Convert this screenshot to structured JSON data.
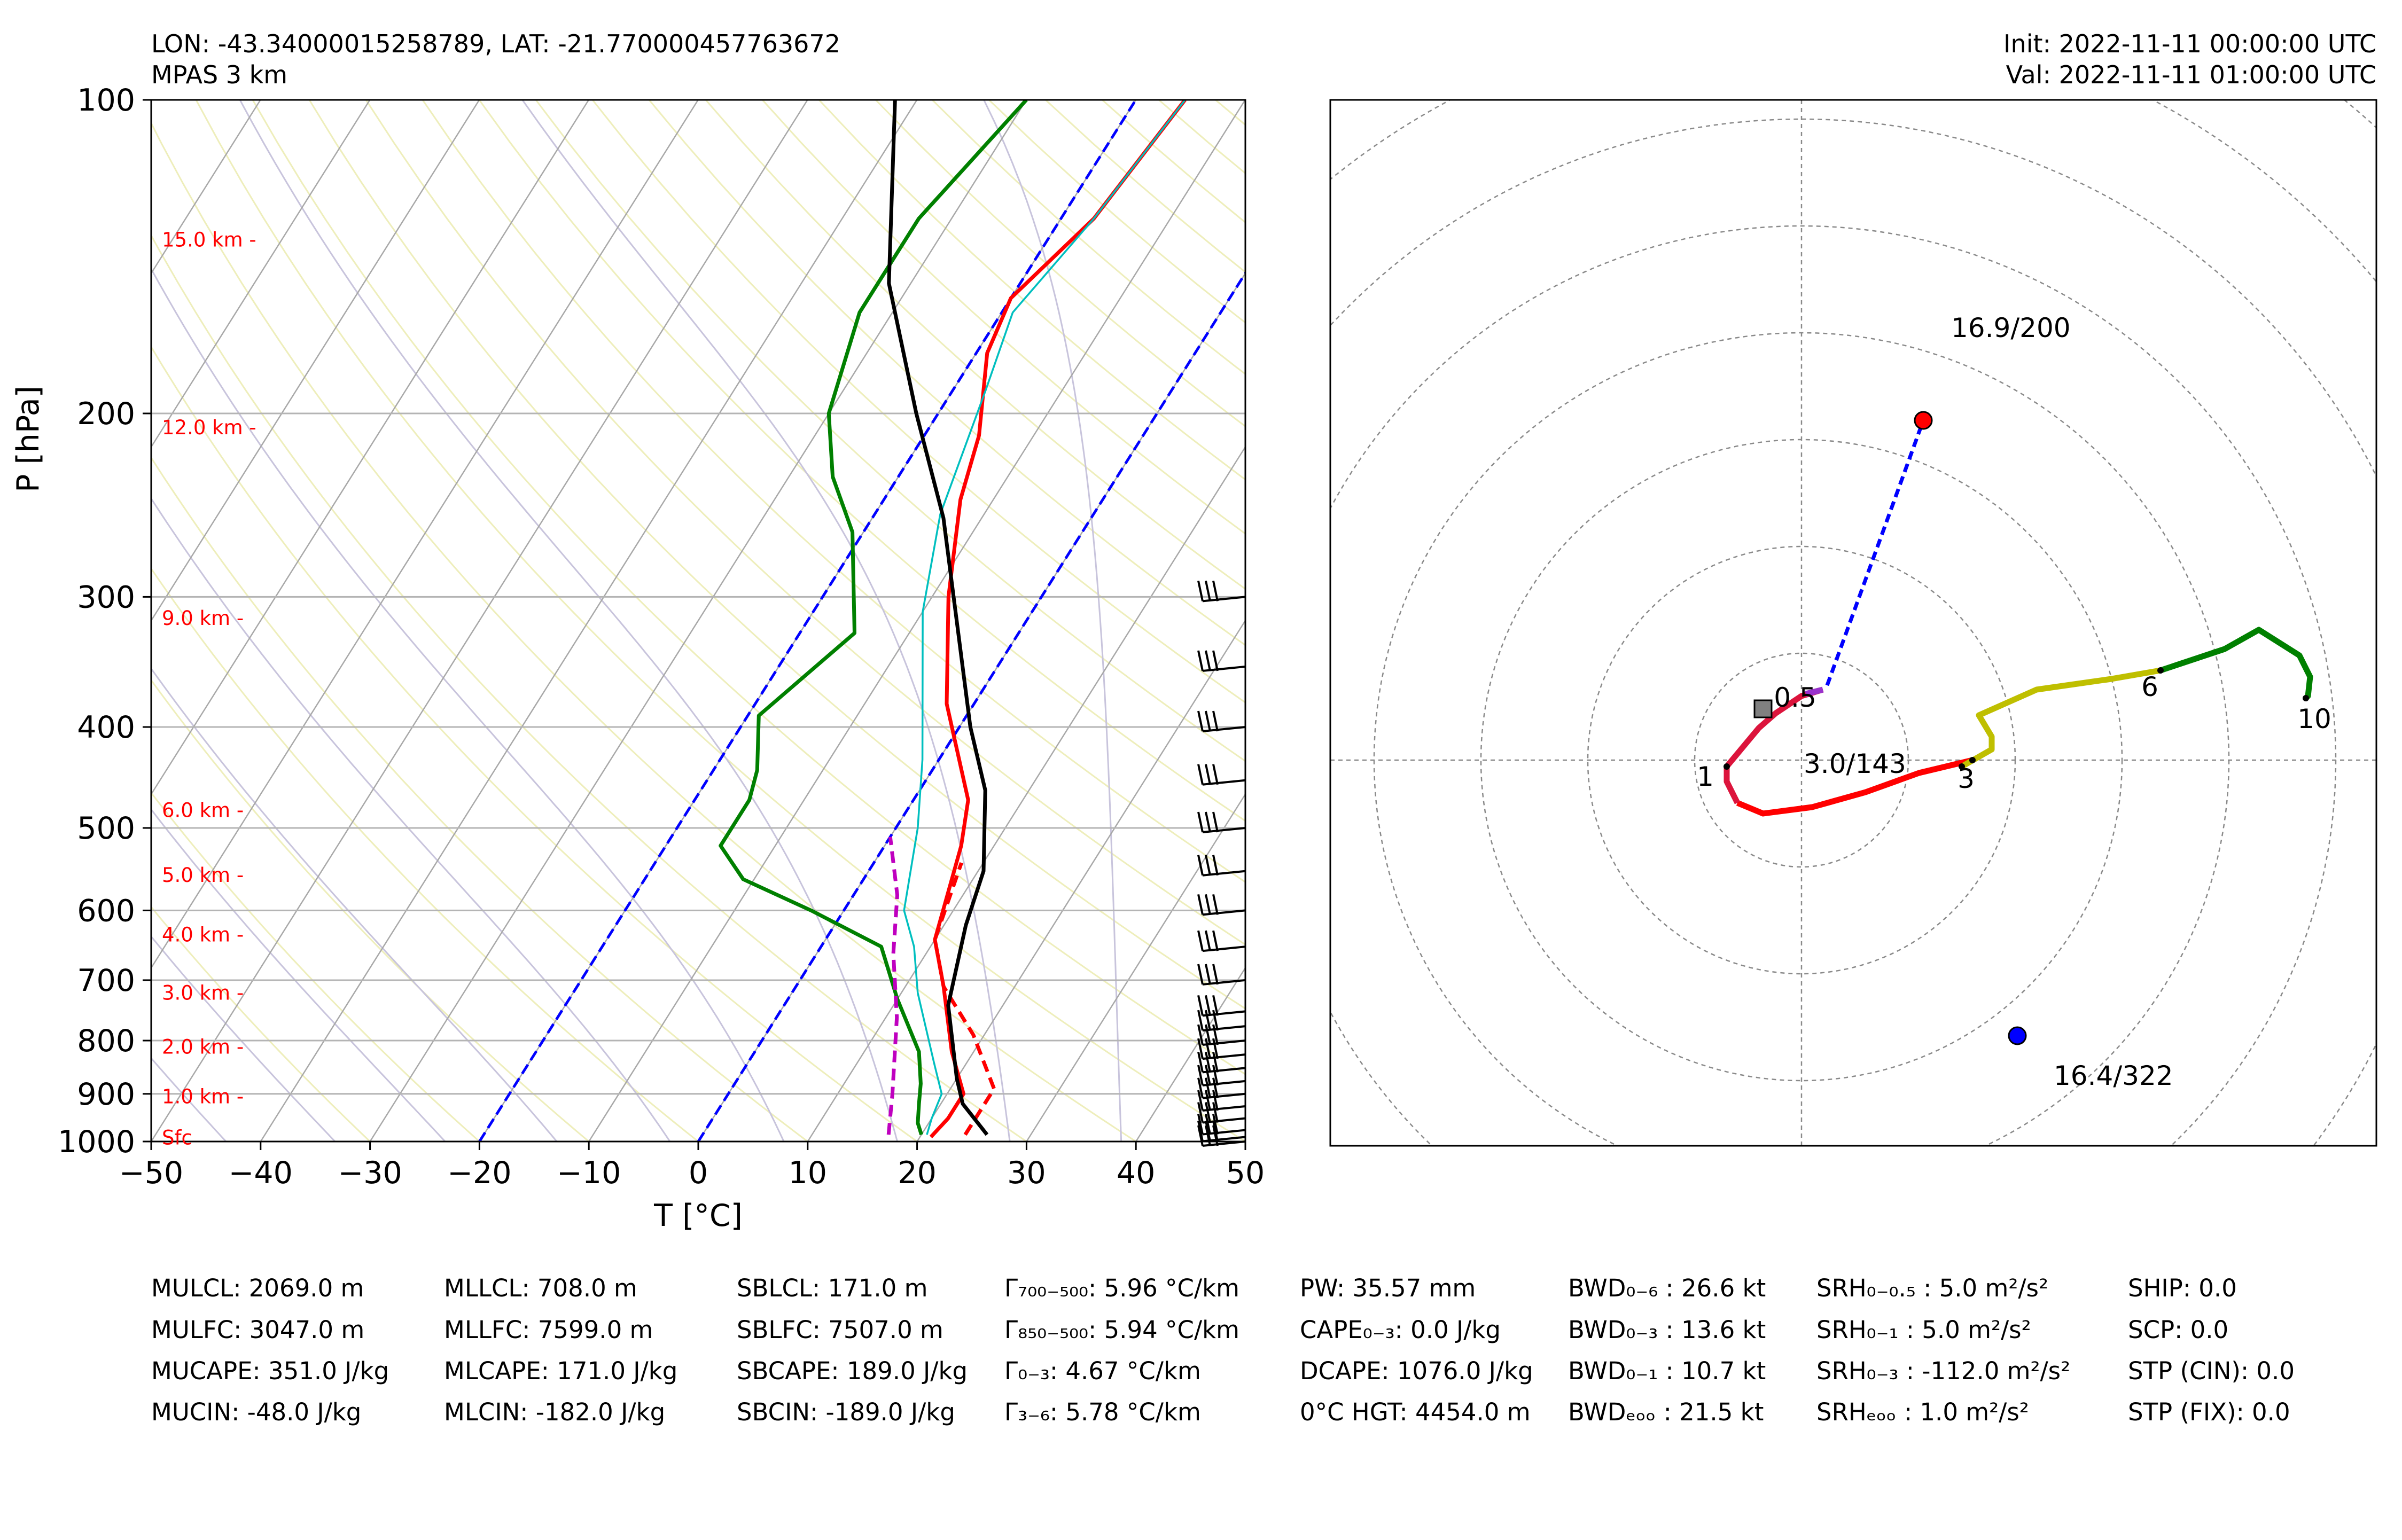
{
  "header": {
    "location": "LON: -43.34000015258789, LAT: -21.770000457763672",
    "model": "MPAS 3 km",
    "init": "Init: 2022-11-11 00:00:00 UTC",
    "valid": "Val: 2022-11-11 01:00:00 UTC"
  },
  "chart_data": [
    {
      "type": "line",
      "subtype": "skew-t log-p",
      "xlabel": "T [°C]",
      "ylabel": "P [hPa]",
      "xlim": [
        -50,
        50
      ],
      "ylim": [
        1000,
        100
      ],
      "x_ticks": [
        "−50",
        "−40",
        "−30",
        "−20",
        "−10",
        "0",
        "10",
        "20",
        "30",
        "40",
        "50"
      ],
      "x_tick_values": [
        -50,
        -40,
        -30,
        -20,
        -10,
        0,
        10,
        20,
        30,
        40,
        50
      ],
      "y_ticks": [
        "100",
        "200",
        "300",
        "400",
        "500",
        "600",
        "700",
        "800",
        "900",
        "1000"
      ],
      "y_tick_values": [
        100,
        200,
        300,
        400,
        500,
        600,
        700,
        800,
        900,
        1000
      ],
      "height_labels": [
        {
          "text": "15.0 km -",
          "p": 136
        },
        {
          "text": "12.0 km -",
          "p": 206
        },
        {
          "text": "9.0 km -",
          "p": 314
        },
        {
          "text": "6.0 km -",
          "p": 480
        },
        {
          "text": "5.0 km -",
          "p": 554
        },
        {
          "text": "4.0 km -",
          "p": 632
        },
        {
          "text": "3.0 km -",
          "p": 719
        },
        {
          "text": "2.0 km -",
          "p": 810
        },
        {
          "text": "1.0 km -",
          "p": 904
        },
        {
          "text": "Sfc",
          "p": 990
        }
      ],
      "series": [
        {
          "role": "temperature",
          "color": "#ff0000",
          "points": [
            [
              21,
              990
            ],
            [
              21.5,
              950
            ],
            [
              21.5,
              900
            ],
            [
              18,
              820
            ],
            [
              13.5,
              710
            ],
            [
              10,
              640
            ],
            [
              7,
              520
            ],
            [
              5,
              470
            ],
            [
              -2.5,
              380
            ],
            [
              -8.5,
              300
            ],
            [
              -13,
              242
            ],
            [
              -15,
              210
            ],
            [
              -19,
              175
            ],
            [
              -20,
              155
            ],
            [
              -17,
              130
            ],
            [
              -15.5,
              100
            ]
          ]
        },
        {
          "role": "dewpoint",
          "color": "#008000",
          "points": [
            [
              20,
              985
            ],
            [
              19,
              960
            ],
            [
              18,
              920
            ],
            [
              17,
              880
            ],
            [
              15,
              820
            ],
            [
              10,
              730
            ],
            [
              5.5,
              650
            ],
            [
              -3,
              600
            ],
            [
              -11,
              560
            ],
            [
              -15,
              520
            ],
            [
              -15,
              470
            ],
            [
              -16,
              440
            ],
            [
              -19,
              390
            ],
            [
              -15,
              325
            ],
            [
              -21,
              260
            ],
            [
              -26,
              230
            ],
            [
              -30,
              200
            ],
            [
              -33,
              160
            ],
            [
              -33,
              130
            ],
            [
              -30,
              100
            ]
          ]
        },
        {
          "role": "virtual-temperature",
          "color": "#ff0000",
          "dashed": true,
          "points": [
            [
              24,
              985
            ],
            [
              24,
              950
            ],
            [
              24,
              890
            ],
            [
              19,
              790
            ],
            [
              13.5,
              710
            ],
            [
              10,
              640
            ],
            [
              8,
              540
            ]
          ]
        },
        {
          "role": "wetbulb",
          "color": "#00bfbf",
          "points": [
            [
              20.5,
              985
            ],
            [
              20,
              950
            ],
            [
              19.5,
              900
            ],
            [
              17,
              840
            ],
            [
              11.5,
              720
            ],
            [
              8.5,
              650
            ],
            [
              5.5,
              600
            ],
            [
              2,
              500
            ],
            [
              -1.5,
              430
            ],
            [
              -10,
              310
            ],
            [
              -14,
              250
            ],
            [
              -17,
              190
            ],
            [
              -19,
              160
            ],
            [
              -17,
              130
            ],
            [
              -15.5,
              100
            ]
          ]
        },
        {
          "role": "parcel",
          "color": "#000000",
          "points": [
            [
              26,
              985
            ],
            [
              22,
              920
            ],
            [
              20,
              870
            ],
            [
              15,
              740
            ],
            [
              12,
              620
            ],
            [
              10.5,
              550
            ],
            [
              6,
              460
            ],
            [
              1,
              400
            ],
            [
              -6,
              320
            ],
            [
              -13.5,
              252
            ],
            [
              -22,
              200
            ],
            [
              -32,
              150
            ],
            [
              -42,
              100
            ]
          ]
        },
        {
          "role": "downdraft",
          "color": "#bf00bf",
          "dashed": true,
          "points": [
            [
              17,
              985
            ],
            [
              15,
              900
            ],
            [
              11,
              760
            ],
            [
              7,
              660
            ],
            [
              4,
              580
            ],
            [
              0,
              510
            ]
          ]
        }
      ],
      "freezing_isotherms_dashed": [
        0,
        -20
      ],
      "wind_barbs": {
        "color": "#000000",
        "levels": [
          1000,
          990,
          975,
          950,
          925,
          900,
          875,
          850,
          825,
          800,
          775,
          750,
          700,
          650,
          600,
          550,
          500,
          450,
          400,
          350,
          300
        ]
      }
    },
    {
      "type": "line",
      "subtype": "hodograph",
      "range_kt": 25,
      "ring_spacing_kt": 5,
      "storm_motion_right": {
        "label": "16.9/200",
        "u": 5.7,
        "v": 15.9,
        "color": "#ff0000"
      },
      "storm_motion_left": {
        "label": "16.4/322",
        "u": 10.1,
        "v": -12.9,
        "color": "#0000ff"
      },
      "mean_wind": {
        "label": "3.0/143",
        "u": -1.8,
        "v": 2.4,
        "color": "#808080"
      },
      "segments": [
        {
          "name": "0-1 km",
          "color": "#ff0000",
          "points": [
            [
              -3.0,
              -2.0
            ],
            [
              -1.8,
              -2.5
            ],
            [
              0.5,
              -2.2
            ],
            [
              3,
              -1.5
            ],
            [
              5.5,
              -0.6
            ],
            [
              8,
              0
            ]
          ]
        },
        {
          "name": "0-1 km lower",
          "color": "#dc143c",
          "points": [
            [
              1.0,
              3.3
            ],
            [
              0,
              3.0
            ],
            [
              -1.2,
              2.2
            ],
            [
              -2.0,
              1.5
            ],
            [
              -3.5,
              -0.3
            ],
            [
              -3.5,
              -1.0
            ],
            [
              -3.0,
              -2.0
            ]
          ]
        },
        {
          "name": "0.5 level",
          "color": "#9932cc",
          "points": [
            [
              1.0,
              3.3
            ],
            [
              0.2,
              3.1
            ]
          ]
        },
        {
          "name": "3-6 km",
          "color": "#bfbf00",
          "points": [
            [
              7.5,
              -0.3
            ],
            [
              8.9,
              0.5
            ],
            [
              8.9,
              1.1
            ],
            [
              8.3,
              2.1
            ],
            [
              11,
              3.3
            ],
            [
              14.5,
              3.8
            ],
            [
              16.8,
              4.2
            ]
          ]
        },
        {
          "name": "6-10 km",
          "color": "#008000",
          "points": [
            [
              16.8,
              4.2
            ],
            [
              19.8,
              5.2
            ],
            [
              21.4,
              6.1
            ],
            [
              23.3,
              4.9
            ],
            [
              23.8,
              3.9
            ],
            [
              23.7,
              3.0
            ],
            [
              23.6,
              2.9
            ]
          ]
        }
      ],
      "labels": [
        {
          "text": "0.5",
          "u": -0.3,
          "v": 2.5
        },
        {
          "text": "1",
          "u": -4.5,
          "v": -1.2
        },
        {
          "text": "3",
          "u": 7.7,
          "v": -1.3
        },
        {
          "text": "6",
          "u": 16.3,
          "v": 3.0
        },
        {
          "text": "10",
          "u": 24.0,
          "v": 1.5
        }
      ]
    }
  ],
  "stats": {
    "col1": [
      "MULCL: 2069.0 m",
      "MULFC: 3047.0 m",
      "MUCAPE: 351.0 J/kg",
      "MUCIN: -48.0 J/kg"
    ],
    "col2": [
      "MLLCL: 708.0 m",
      "MLLFC: 7599.0 m",
      "MLCAPE: 171.0 J/kg",
      "MLCIN: -182.0 J/kg"
    ],
    "col3": [
      "SBLCL: 171.0 m",
      "SBLFC: 7507.0 m",
      "SBCAPE: 189.0 J/kg",
      "SBCIN: -189.0 J/kg"
    ],
    "col4": [
      "Γ₇₀₀₋₅₀₀: 5.96 °C/km",
      "Γ₈₅₀₋₅₀₀: 5.94 °C/km",
      "Γ₀₋₃: 4.67 °C/km",
      "Γ₃₋₆: 5.78 °C/km"
    ],
    "col5": [
      "PW: 35.57 mm",
      "CAPE₀₋₃: 0.0 J/kg",
      "DCAPE: 1076.0 J/kg",
      "0°C HGT: 4454.0 m"
    ],
    "col6": [
      "BWD₀₋₆ : 26.6 kt",
      "BWD₀₋₃ : 13.6 kt",
      "BWD₀₋₁ : 10.7 kt",
      "BWDₑₒₒ : 21.5 kt"
    ],
    "col7": [
      "SRH₀₋₀.₅ : 5.0 m²/s²",
      "SRH₀₋₁ : 5.0 m²/s²",
      "SRH₀₋₃ : -112.0 m²/s²",
      "SRHₑₒₒ : 1.0 m²/s²"
    ],
    "col8": [
      "SHIP: 0.0",
      "SCP: 0.0",
      "STP (CIN): 0.0",
      "STP (FIX): 0.0"
    ]
  }
}
